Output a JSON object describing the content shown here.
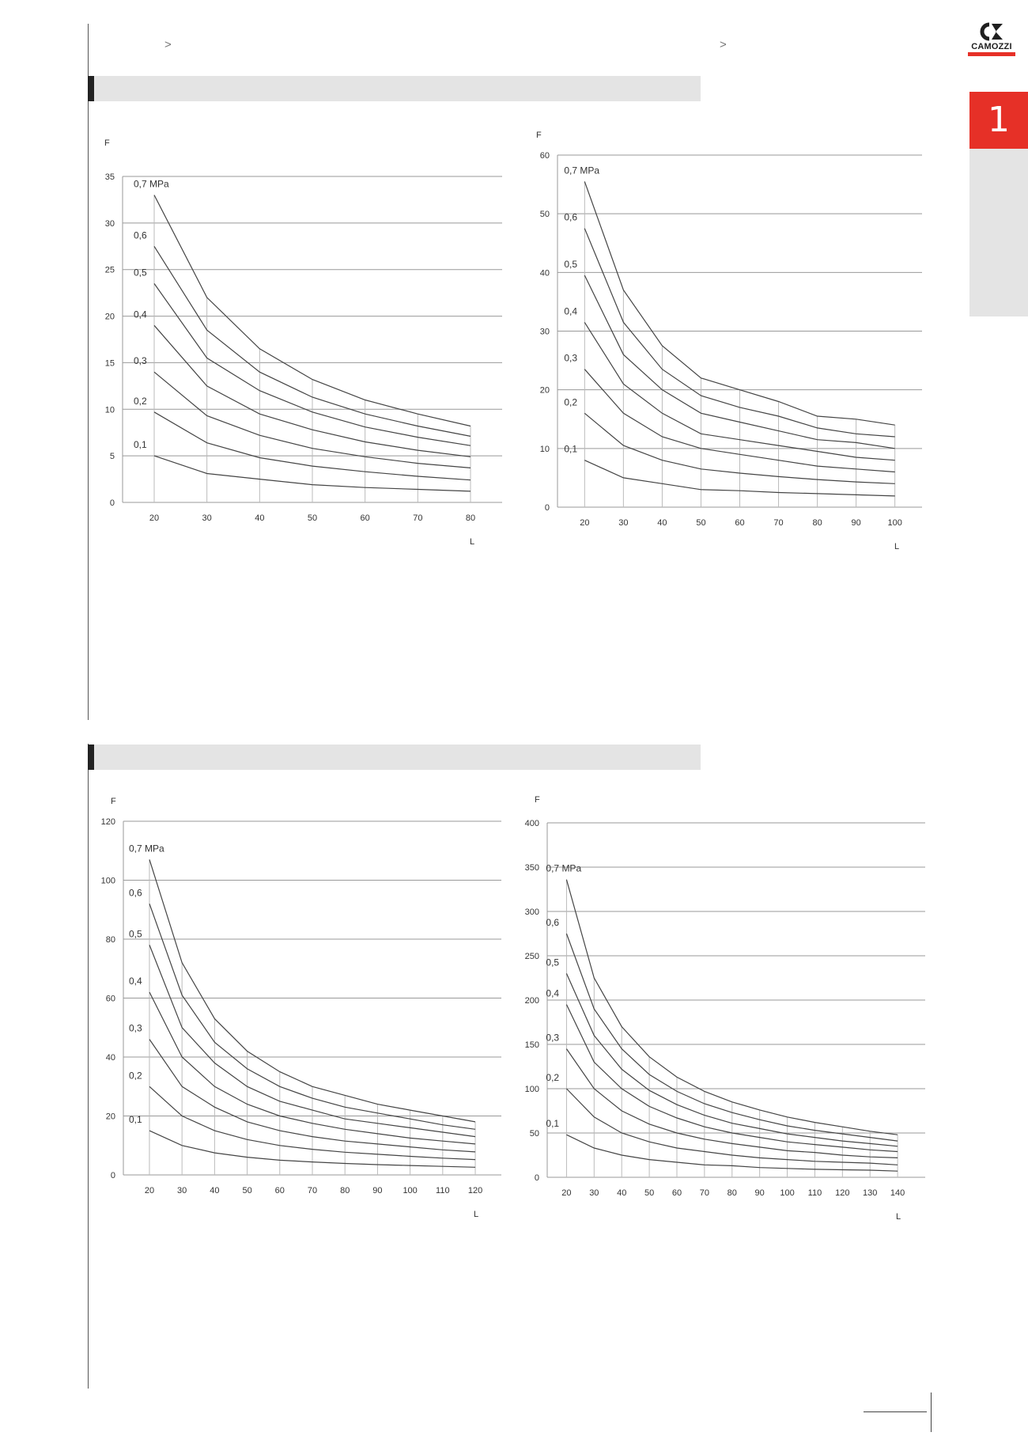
{
  "header": {
    "crumb_left": ">",
    "crumb_right": ">",
    "brand": "CAMOZZI",
    "tab_number": "1"
  },
  "chart_data": [
    {
      "type": "line",
      "xlabel": "L",
      "ylabel": "F",
      "x": [
        20,
        30,
        40,
        50,
        60,
        70,
        80
      ],
      "xticks": [
        20,
        30,
        40,
        50,
        60,
        70,
        80
      ],
      "yticks": [
        0,
        5,
        10,
        15,
        20,
        25,
        30,
        35
      ],
      "xlim": [
        14,
        86
      ],
      "ylim": [
        0,
        35
      ],
      "grid": true,
      "series": [
        {
          "name": "0,7 MPa",
          "values": [
            33,
            22,
            16.5,
            13.2,
            11,
            9.5,
            8.2
          ]
        },
        {
          "name": "0,6",
          "values": [
            27.5,
            18.5,
            14,
            11.3,
            9.5,
            8.2,
            7.1
          ]
        },
        {
          "name": "0,5",
          "values": [
            23.5,
            15.5,
            12,
            9.7,
            8.1,
            7,
            6.1
          ]
        },
        {
          "name": "0,4",
          "values": [
            19,
            12.5,
            9.5,
            7.8,
            6.5,
            5.6,
            4.9
          ]
        },
        {
          "name": "0,3",
          "values": [
            14,
            9.3,
            7.2,
            5.8,
            4.9,
            4.2,
            3.7
          ]
        },
        {
          "name": "0,2",
          "values": [
            9.7,
            6.4,
            4.8,
            3.9,
            3.3,
            2.8,
            2.4
          ]
        },
        {
          "name": "0,1",
          "values": [
            5,
            3.1,
            2.5,
            1.9,
            1.6,
            1.4,
            1.2
          ]
        }
      ]
    },
    {
      "type": "line",
      "xlabel": "L",
      "ylabel": "F",
      "x": [
        20,
        30,
        40,
        50,
        60,
        70,
        80,
        90,
        100
      ],
      "xticks": [
        20,
        30,
        40,
        50,
        60,
        70,
        80,
        90,
        100
      ],
      "yticks": [
        0,
        10,
        20,
        30,
        40,
        50,
        60
      ],
      "xlim": [
        13,
        107
      ],
      "ylim": [
        0,
        60
      ],
      "grid": true,
      "series": [
        {
          "name": "0,7 MPa",
          "values": [
            55.5,
            37,
            27.5,
            22,
            20,
            18,
            15.5,
            15,
            14
          ]
        },
        {
          "name": "0,6",
          "values": [
            47.5,
            31.5,
            23.5,
            19,
            17,
            15.5,
            13.5,
            12.5,
            12
          ]
        },
        {
          "name": "0,5",
          "values": [
            39.5,
            26,
            20,
            16,
            14.5,
            13,
            11.5,
            11,
            10
          ]
        },
        {
          "name": "0,4",
          "values": [
            31.5,
            21,
            16,
            12.5,
            11.5,
            10.5,
            9.5,
            8.5,
            8
          ]
        },
        {
          "name": "0,3",
          "values": [
            23.5,
            16,
            12,
            10,
            9,
            8,
            7,
            6.5,
            6
          ]
        },
        {
          "name": "0,2",
          "values": [
            16,
            10.5,
            8,
            6.5,
            5.8,
            5.2,
            4.7,
            4.3,
            4
          ]
        },
        {
          "name": "0,1",
          "values": [
            8,
            5,
            4,
            3,
            2.8,
            2.5,
            2.3,
            2.1,
            1.9
          ]
        }
      ]
    },
    {
      "type": "line",
      "xlabel": "L",
      "ylabel": "F",
      "x": [
        20,
        30,
        40,
        50,
        60,
        70,
        80,
        90,
        100,
        110,
        120
      ],
      "xticks": [
        20,
        30,
        40,
        50,
        60,
        70,
        80,
        90,
        100,
        110,
        120
      ],
      "yticks": [
        0,
        20,
        40,
        60,
        80,
        100,
        120
      ],
      "xlim": [
        12,
        128
      ],
      "ylim": [
        0,
        120
      ],
      "grid": true,
      "series": [
        {
          "name": "0,7 MPa",
          "values": [
            107,
            72,
            53,
            42,
            35,
            30,
            27,
            24,
            22,
            20,
            18
          ]
        },
        {
          "name": "0,6",
          "values": [
            92,
            61,
            45,
            36,
            30,
            26,
            23,
            21,
            19,
            17,
            15.5
          ]
        },
        {
          "name": "0,5",
          "values": [
            78,
            50,
            38,
            30,
            25,
            22,
            19,
            17.5,
            16,
            14.5,
            13
          ]
        },
        {
          "name": "0,4",
          "values": [
            62,
            40,
            30,
            24,
            20,
            17.5,
            15.5,
            14,
            12.5,
            11.5,
            10.5
          ]
        },
        {
          "name": "0,3",
          "values": [
            46,
            30,
            23,
            18,
            15,
            13,
            11.5,
            10.5,
            9.5,
            8.5,
            7.8
          ]
        },
        {
          "name": "0,2",
          "values": [
            30,
            20,
            15,
            12,
            10,
            8.7,
            7.7,
            7,
            6.3,
            5.7,
            5.2
          ]
        },
        {
          "name": "0,1",
          "values": [
            15,
            10,
            7.5,
            6,
            5,
            4.4,
            3.9,
            3.5,
            3.2,
            2.9,
            2.6
          ]
        }
      ]
    },
    {
      "type": "line",
      "xlabel": "L",
      "ylabel": "F",
      "x": [
        20,
        30,
        40,
        50,
        60,
        70,
        80,
        90,
        100,
        110,
        120,
        130,
        140
      ],
      "xticks": [
        20,
        30,
        40,
        50,
        60,
        70,
        80,
        90,
        100,
        110,
        120,
        130,
        140
      ],
      "yticks": [
        0,
        50,
        100,
        150,
        200,
        250,
        300,
        350,
        400
      ],
      "xlim": [
        13,
        150
      ],
      "ylim": [
        0,
        400
      ],
      "grid": true,
      "series": [
        {
          "name": "0,7 MPa",
          "values": [
            336,
            225,
            170,
            136,
            113,
            97,
            85,
            76,
            68,
            62,
            57,
            52,
            48
          ]
        },
        {
          "name": "0,6",
          "values": [
            275,
            190,
            145,
            116,
            97,
            83,
            73,
            65,
            58,
            53,
            49,
            45,
            41
          ]
        },
        {
          "name": "0,5",
          "values": [
            230,
            160,
            122,
            98,
            82,
            70,
            61,
            55,
            49,
            45,
            41,
            38,
            35
          ]
        },
        {
          "name": "0,4",
          "values": [
            195,
            130,
            100,
            80,
            67,
            57,
            50,
            45,
            40,
            37,
            34,
            31,
            29
          ]
        },
        {
          "name": "0,3",
          "values": [
            145,
            100,
            75,
            60,
            50,
            43,
            38,
            34,
            30,
            28,
            25,
            23,
            22
          ]
        },
        {
          "name": "0,2",
          "values": [
            100,
            68,
            50,
            40,
            33,
            29,
            25,
            22,
            20,
            18,
            17,
            16,
            14
          ]
        },
        {
          "name": "0,1",
          "values": [
            48,
            33,
            25,
            20,
            17,
            14,
            13,
            11,
            10,
            9,
            8.5,
            8,
            7
          ]
        }
      ]
    }
  ]
}
